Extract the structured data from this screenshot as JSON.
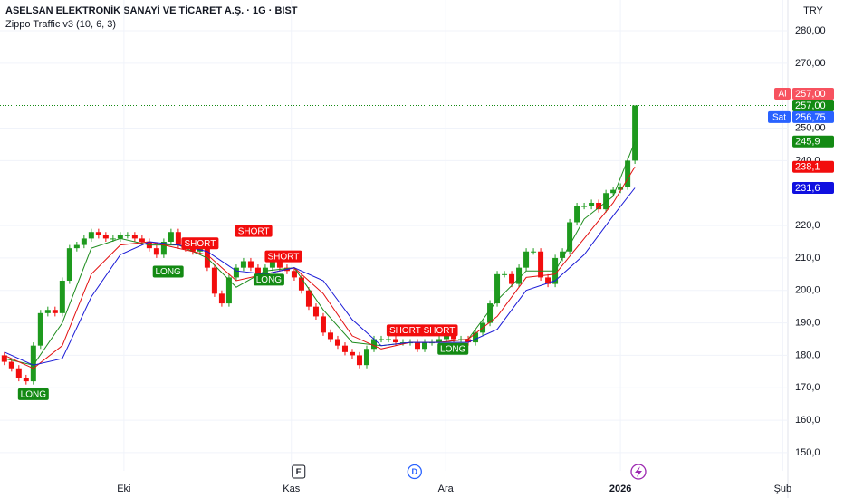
{
  "chart_data": {
    "type": "candlestick",
    "title": "ASELSAN ELEKTRONİK SANAYİ VE TİCARET A.Ş. · 1G · BIST",
    "subtitle": "Zippo Traffic v3 (10, 6, 3)",
    "currency": "TRY",
    "up_color": "#1e9a1e",
    "down_color": "#f20d0d",
    "open": [
      180,
      178,
      176,
      173,
      172,
      183,
      193,
      194,
      193,
      203,
      213,
      214,
      216,
      218,
      217,
      216,
      216,
      217,
      217,
      216,
      215,
      213,
      211,
      215,
      218,
      214,
      213,
      212,
      213,
      207,
      199,
      196,
      204,
      207,
      209,
      207,
      205,
      207,
      209,
      207,
      206,
      204,
      200,
      195,
      192,
      187,
      185,
      183,
      181,
      180,
      177,
      182,
      185,
      185,
      185,
      184,
      184,
      184,
      182,
      184,
      184,
      185,
      186,
      185,
      185,
      184,
      187,
      190,
      196,
      205,
      205,
      202,
      207,
      212,
      212,
      204,
      202,
      210,
      212,
      221,
      226,
      226,
      227,
      225,
      230,
      231,
      232,
      240
    ],
    "high": [
      181,
      179,
      177,
      174,
      184,
      194,
      195,
      195,
      204,
      214,
      215,
      217,
      219,
      219,
      218,
      217,
      218,
      218,
      218,
      217,
      216,
      214,
      216,
      219,
      219,
      215,
      214,
      214,
      214,
      208,
      200,
      205,
      208,
      210,
      210,
      208,
      208,
      210,
      210,
      208,
      207,
      205,
      201,
      196,
      193,
      188,
      186,
      184,
      182,
      181,
      183,
      186,
      186,
      186,
      186,
      185,
      185,
      185,
      185,
      185,
      186,
      187,
      187,
      186,
      186,
      188,
      191,
      197,
      206,
      206,
      206,
      208,
      213,
      213,
      213,
      205,
      211,
      213,
      222,
      227,
      227,
      228,
      228,
      231,
      232,
      233,
      241,
      257
    ],
    "low": [
      177,
      175,
      172,
      171,
      171,
      182,
      192,
      192,
      192,
      202,
      212,
      213,
      215,
      216,
      215,
      215,
      215,
      216,
      215,
      214,
      212,
      210,
      210,
      214,
      213,
      212,
      211,
      211,
      206,
      198,
      195,
      195,
      203,
      206,
      206,
      204,
      204,
      206,
      206,
      205,
      203,
      199,
      194,
      191,
      186,
      184,
      182,
      180,
      179,
      176,
      176,
      181,
      184,
      184,
      183,
      183,
      183,
      181,
      181,
      183,
      183,
      184,
      184,
      184,
      183,
      183,
      186,
      189,
      195,
      204,
      201,
      201,
      206,
      211,
      203,
      201,
      201,
      209,
      211,
      220,
      225,
      225,
      224,
      224,
      229,
      230,
      231,
      239
    ],
    "close": [
      178,
      176,
      173,
      172,
      183,
      193,
      194,
      193,
      203,
      213,
      214,
      216,
      218,
      217,
      216,
      216,
      217,
      217,
      216,
      215,
      213,
      211,
      215,
      218,
      214,
      213,
      212,
      213,
      207,
      199,
      196,
      204,
      207,
      209,
      207,
      205,
      207,
      209,
      207,
      206,
      204,
      200,
      195,
      192,
      187,
      185,
      183,
      181,
      180,
      177,
      182,
      185,
      185,
      185,
      184,
      184,
      184,
      182,
      184,
      184,
      185,
      186,
      185,
      185,
      184,
      187,
      190,
      196,
      205,
      205,
      202,
      207,
      212,
      212,
      204,
      202,
      210,
      212,
      221,
      226,
      226,
      227,
      225,
      230,
      231,
      232,
      240,
      257
    ],
    "series": [
      {
        "color": "#1e8c1e",
        "x": [
          0,
          4,
          8,
          12,
          16,
          20,
          24,
          28,
          32,
          36,
          40,
          44,
          48,
          52,
          56,
          60,
          64,
          68,
          72,
          76,
          80,
          84,
          87
        ],
        "values": [
          179,
          177,
          190,
          213,
          216,
          214,
          214,
          210,
          201,
          206,
          207,
          194,
          184,
          183,
          184,
          184,
          185,
          197,
          206,
          206,
          222,
          229,
          245.9
        ]
      },
      {
        "color": "#e31010",
        "x": [
          0,
          4,
          8,
          12,
          16,
          20,
          24,
          28,
          32,
          36,
          40,
          44,
          48,
          52,
          56,
          60,
          64,
          68,
          72,
          76,
          80,
          84,
          87
        ],
        "values": [
          180,
          176,
          183,
          205,
          214,
          215,
          213,
          211,
          203,
          205,
          207,
          199,
          186,
          182,
          184,
          184,
          185,
          192,
          204,
          205,
          216,
          227,
          238.1
        ]
      },
      {
        "color": "#1a1ad6",
        "x": [
          0,
          4,
          8,
          12,
          16,
          20,
          24,
          28,
          32,
          36,
          40,
          44,
          48,
          52,
          56,
          60,
          64,
          68,
          72,
          76,
          80,
          84,
          87
        ],
        "values": [
          181,
          177,
          179,
          198,
          211,
          215,
          214,
          212,
          206,
          205,
          207,
          203,
          191,
          183,
          184,
          184,
          184,
          188,
          200,
          203,
          211,
          223,
          231.6
        ]
      }
    ],
    "signals": [
      {
        "label": "LONG",
        "x": 4,
        "y": 168
      },
      {
        "label": "LONG",
        "x": 22.6,
        "y": 205.8
      },
      {
        "label": "SHORT",
        "x": 27,
        "y": 214.5
      },
      {
        "label": "SHORT",
        "x": 34.4,
        "y": 218.3
      },
      {
        "label": "LONG",
        "x": 36.5,
        "y": 203.3
      },
      {
        "label": "SHORT",
        "x": 38.5,
        "y": 210.5
      },
      {
        "label": "SHORT",
        "x": 55.3,
        "y": 187.7
      },
      {
        "label": "SHORT",
        "x": 60,
        "y": 187.7
      },
      {
        "label": "LONG",
        "x": 61.9,
        "y": 182
      }
    ],
    "last_price": 257,
    "price_labels": [
      {
        "prefix": "Al",
        "value": 257,
        "label": "257,00",
        "color": "#f7525f"
      },
      {
        "value": 257,
        "label": "257,00",
        "color": "#138a13"
      },
      {
        "prefix": "Sat",
        "value": 256.75,
        "label": "256,75",
        "color": "#2962ff"
      },
      {
        "value": 245.9,
        "label": "245,9",
        "color": "#138a13"
      },
      {
        "value": 238.1,
        "label": "238,1",
        "color": "#f20d0d"
      },
      {
        "value": 231.6,
        "label": "231,6",
        "color": "#1010e0"
      }
    ],
    "events": [
      {
        "label": "E",
        "x": 40.6
      },
      {
        "label": "D",
        "x": 56.6
      }
    ],
    "xlim": [
      -0.6,
      108.1
    ],
    "xticks": [
      {
        "value": 16.5,
        "label": "Eki"
      },
      {
        "value": 39.6,
        "label": "Kas"
      },
      {
        "value": 60.9,
        "label": "Ara"
      },
      {
        "value": 85,
        "label": "2026"
      },
      {
        "value": 107.4,
        "label": "Şub"
      }
    ],
    "ylim": [
      144.4,
      289.5
    ],
    "yticks": [
      {
        "value": 150,
        "label": "150,0"
      },
      {
        "value": 160,
        "label": "160,0"
      },
      {
        "value": 170,
        "label": "170,0"
      },
      {
        "value": 180,
        "label": "180,0"
      },
      {
        "value": 190,
        "label": "190,0"
      },
      {
        "value": 200,
        "label": "200,0"
      },
      {
        "value": 210,
        "label": "210,0"
      },
      {
        "value": 220,
        "label": "220,0"
      },
      {
        "value": 240,
        "label": "240,0"
      },
      {
        "value": 250,
        "label": "250,00"
      },
      {
        "value": 270,
        "label": "270,00"
      },
      {
        "value": 280,
        "label": "280,00"
      }
    ]
  }
}
